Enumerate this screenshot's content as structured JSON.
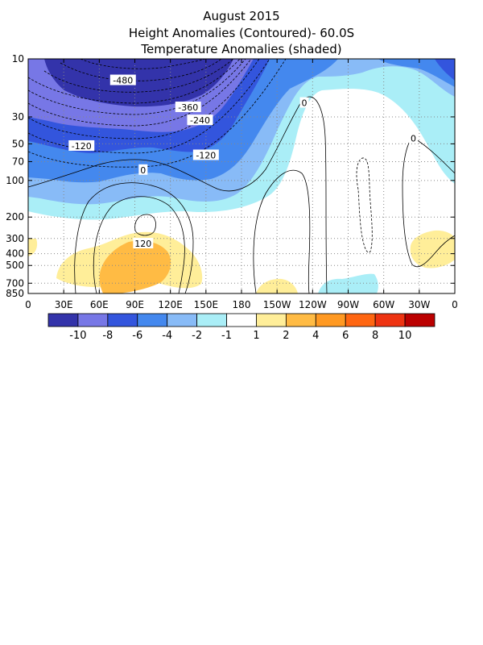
{
  "titles": {
    "line1": "August 2015",
    "line2": "Height Anomalies (Contoured)- 60.0S",
    "line3": "Temperature Anomalies (shaded)"
  },
  "chart_data": {
    "type": "heatmap",
    "title": "August 2015",
    "subtitle": "Height Anomalies (Contoured)- 60.0S / Temperature Anomalies (shaded)",
    "x_ticks": [
      "0",
      "30E",
      "60E",
      "90E",
      "120E",
      "150E",
      "180",
      "150W",
      "120W",
      "90W",
      "60W",
      "30W",
      "0"
    ],
    "x_range_deg_east": [
      0,
      360
    ],
    "y_ticks": [
      "10",
      "30",
      "50",
      "70",
      "100",
      "200",
      "300",
      "400",
      "500",
      "700",
      "850"
    ],
    "y_range_hpa": [
      10,
      850
    ],
    "y_scale": "log",
    "grid": true,
    "grid_style": "dotted",
    "shading": {
      "label": "Temperature Anomalies (shaded)",
      "colorbar_ticks": [
        "-10",
        "-8",
        "-6",
        "-4",
        "-2",
        "-1",
        "1",
        "2",
        "4",
        "6",
        "8",
        "10"
      ],
      "bin_colors": [
        "#3333aa",
        "#7777e6",
        "#3355dd",
        "#4488ee",
        "#88bbf7",
        "#aaeef7",
        "#ffffff",
        "#ffee99",
        "#ffbb44",
        "#ff9922",
        "#ff6611",
        "#ee3311",
        "#bb0000"
      ],
      "regions": [
        {
          "range": "below -10",
          "where": "0-150E, 10-25 hPa"
        },
        {
          "range": "-10 to -8",
          "where": "0-200E, 10-40 hPa"
        },
        {
          "range": "-8 to -6",
          "where": "0-210E, 10-70 hPa"
        },
        {
          "range": "-6 to -4",
          "where": "0-230E and 320-360E, 10-100 hPa"
        },
        {
          "range": "-4 to -2",
          "where": "0-260E and 300-360E, 10-180 hPa"
        },
        {
          "range": "-2 to -1",
          "where": "broad band 10-300 hPa; 250-290E near 850 hPa"
        },
        {
          "range": "1 to 2",
          "where": "20-150E 300-850 hPa; 320-360E 300-500 hPa"
        },
        {
          "range": "2 to 4",
          "where": "60-120E 300-850 hPa; 200-230E near 850 hPa"
        }
      ]
    },
    "contours": {
      "label": "Height Anomalies (Contoured)",
      "interval": 60,
      "negative_dashed": true,
      "labeled_values": [
        {
          "text": "-480",
          "lon": 80,
          "p": 15
        },
        {
          "text": "-360",
          "lon": 135,
          "p": 25
        },
        {
          "text": "-240",
          "lon": 145,
          "p": 32
        },
        {
          "text": "-120",
          "lon": 45,
          "p": 52
        },
        {
          "text": "-120",
          "lon": 150,
          "p": 62
        },
        {
          "text": "0",
          "lon": 97,
          "p": 82
        },
        {
          "text": "0",
          "lon": 233,
          "p": 23
        },
        {
          "text": "0",
          "lon": 325,
          "p": 45
        },
        {
          "text": "120",
          "lon": 97,
          "p": 330
        }
      ]
    }
  }
}
